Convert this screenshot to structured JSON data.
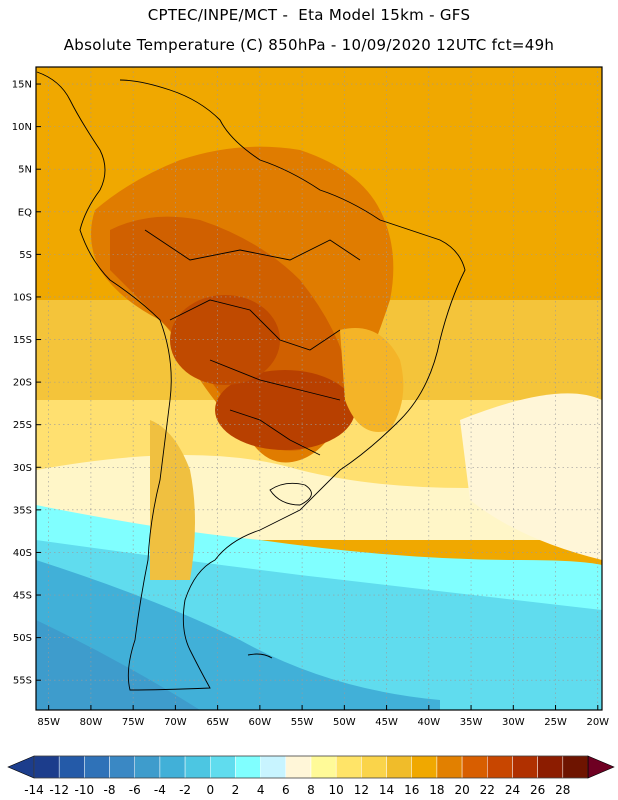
{
  "header": {
    "line1": "CPTEC/INPE/MCT -  Eta Model 15km - GFS",
    "line2": "Absolute Temperature (C) 850hPa - 10/09/2020 12UTC fct=49h"
  },
  "map": {
    "lat_labels": [
      "15N",
      "10N",
      "5N",
      "EQ",
      "5S",
      "10S",
      "15S",
      "20S",
      "25S",
      "30S",
      "35S",
      "40S",
      "45S",
      "50S",
      "55S"
    ],
    "lon_labels": [
      "85W",
      "80W",
      "75W",
      "70W",
      "65W",
      "60W",
      "55W",
      "50W",
      "45W",
      "40W",
      "35W",
      "30W",
      "25W",
      "20W"
    ],
    "extent": {
      "lon_min": -86.5,
      "lon_max": -19.5,
      "lat_min": -58.5,
      "lat_max": 17
    },
    "colors": {
      "ocean_warm": "#f0a800",
      "land_hot": "#c04a00",
      "frame": "#000000"
    }
  },
  "colorbar": {
    "labels": [
      "-14",
      "-12",
      "-10",
      "-8",
      "-6",
      "-4",
      "-2",
      "0",
      "2",
      "4",
      "6",
      "8",
      "10",
      "12",
      "14",
      "16",
      "18",
      "20",
      "22",
      "24",
      "26",
      "28"
    ],
    "colors": [
      "#1c3d8c",
      "#245aa8",
      "#2f72b8",
      "#3a88c4",
      "#3e9ccc",
      "#41b0d8",
      "#4cc6e2",
      "#60dcee",
      "#80ffff",
      "#c8f4ff",
      "#fff6d8",
      "#fffa98",
      "#ffe468",
      "#fad44a",
      "#f0bc2a",
      "#f0a800",
      "#e28000",
      "#d85e00",
      "#c84600",
      "#b03000",
      "#8c1c00",
      "#6e1400"
    ]
  }
}
